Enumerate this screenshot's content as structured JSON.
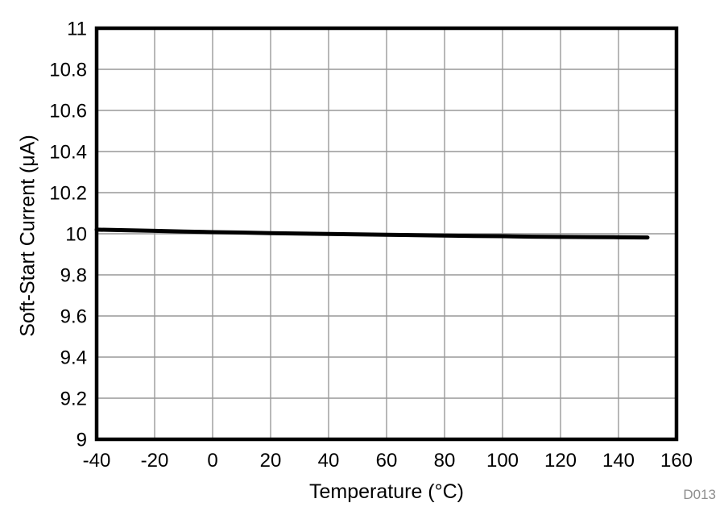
{
  "chart_data": {
    "type": "line",
    "title": "",
    "xlabel": "Temperature (°C)",
    "ylabel": "Soft-Start Current (μA)",
    "xlim": [
      -40,
      160
    ],
    "ylim": [
      9,
      11
    ],
    "xticks": [
      -40,
      -20,
      0,
      20,
      40,
      60,
      80,
      100,
      120,
      140,
      160
    ],
    "yticks": [
      9,
      9.2,
      9.4,
      9.6,
      9.8,
      10,
      10.2,
      10.4,
      10.6,
      10.8,
      11
    ],
    "grid": true,
    "legend": null,
    "series": [
      {
        "name": "soft-start-current",
        "points": [
          [
            -40,
            10.02
          ],
          [
            -30,
            10.017
          ],
          [
            -20,
            10.014
          ],
          [
            -10,
            10.011
          ],
          [
            0,
            10.008
          ],
          [
            10,
            10.006
          ],
          [
            20,
            10.003
          ],
          [
            30,
            10.001
          ],
          [
            40,
            9.999
          ],
          [
            50,
            9.997
          ],
          [
            60,
            9.995
          ],
          [
            70,
            9.993
          ],
          [
            80,
            9.991
          ],
          [
            90,
            9.989
          ],
          [
            100,
            9.988
          ],
          [
            110,
            9.986
          ],
          [
            120,
            9.985
          ],
          [
            130,
            9.984
          ],
          [
            140,
            9.983
          ],
          [
            150,
            9.982
          ]
        ]
      }
    ],
    "colors": {
      "line": "#000000",
      "frame": "#000000",
      "grid": "#999999",
      "watermark": "#8e8e8e",
      "background": "#ffffff"
    },
    "watermark": "D013"
  }
}
